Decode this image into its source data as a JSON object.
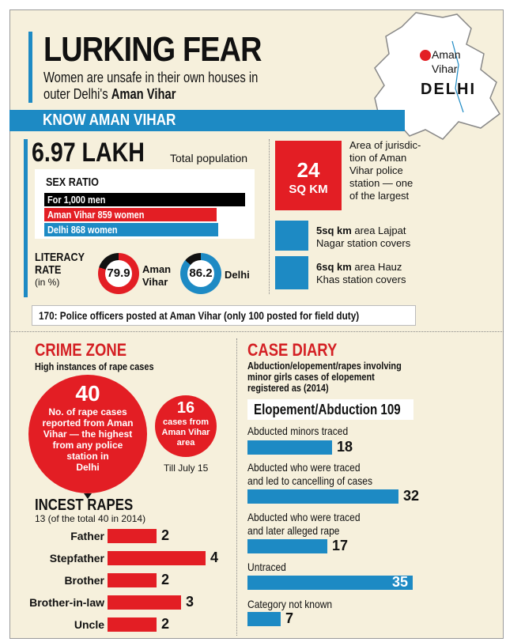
{
  "header": {
    "title": "LURKING FEAR",
    "subtitle_plain": "Women are unsafe in their own houses in outer Delhi's",
    "subtitle_bold": "Aman Vihar"
  },
  "map": {
    "place_label_1": "Aman",
    "place_label_2": "Vihar",
    "region": "DELHI",
    "marker_color": "#e31e24"
  },
  "section_band": "KNOW AMAN VIHAR",
  "population": {
    "value": "6.97 LAKH",
    "label": "Total population"
  },
  "sex_ratio": {
    "title": "SEX RATIO",
    "rows": [
      {
        "label": "For 1,000 men",
        "value": 1000,
        "color": "#000000"
      },
      {
        "label": "Aman Vihar 859 women",
        "value": 859,
        "color": "#e31e24"
      },
      {
        "label": "Delhi 868 women",
        "value": 868,
        "color": "#1d8ac4"
      }
    ]
  },
  "literacy": {
    "title_1": "LITERACY",
    "title_2": "RATE",
    "unit": "(in %)",
    "items": [
      {
        "value": "79.9",
        "label_1": "Aman",
        "label_2": "Vihar",
        "color": "#e31e24"
      },
      {
        "value": "86.2",
        "label_1": "Delhi",
        "label_2": "",
        "color": "#1d8ac4"
      }
    ]
  },
  "jurisdiction": {
    "big_value": "24",
    "big_unit": "SQ KM",
    "big_text": [
      "Area of jurisdic-",
      "tion of Aman",
      "Vihar police",
      "station — one",
      "of the largest"
    ],
    "comparisons": [
      {
        "bold": "5sq km",
        "text_1": " area Lajpat",
        "text_2": "Nagar station covers"
      },
      {
        "bold": "6sq km",
        "text_1": " area Hauz",
        "text_2": "Khas station covers"
      }
    ]
  },
  "police_note": "170: Police officers posted at Aman Vihar (only 100 posted for field duty)",
  "crime_zone": {
    "heading": "CRIME ZONE",
    "subheading": "High instances of rape cases",
    "big_circle": {
      "value": "40",
      "text": [
        "No. of rape cases",
        "reported from Aman",
        "Vihar — the highest",
        "from any police",
        "station in",
        "Delhi"
      ]
    },
    "small_circle": {
      "value": "16",
      "text": [
        "cases from",
        "Aman Vihar",
        "area"
      ],
      "caption": "Till July 15"
    }
  },
  "case_diary": {
    "heading": "CASE DIARY",
    "subheading": [
      "Abduction/elopement/rapes involving",
      "minor girls cases of elopement",
      "registered as (2014)"
    ],
    "total_label": "Elopement/Abduction 109"
  },
  "chart_data": [
    {
      "type": "bar",
      "title": "INCEST RAPES",
      "subtitle": "13 (of the total 40 in 2014)",
      "categories": [
        "Father",
        "Stepfather",
        "Brother",
        "Brother-in-law",
        "Uncle"
      ],
      "values": [
        2,
        4,
        2,
        3,
        2
      ],
      "color": "#e31e24"
    },
    {
      "type": "bar",
      "title": "",
      "categories": [
        [
          "Abducted minors traced"
        ],
        [
          "Abducted who were traced",
          "and led to cancelling of cases"
        ],
        [
          "Abducted who were traced",
          "and later alleged rape"
        ],
        [
          "Untraced"
        ],
        [
          "Category not known"
        ]
      ],
      "values": [
        18,
        32,
        17,
        35,
        7
      ],
      "color": "#1d8ac4"
    }
  ]
}
